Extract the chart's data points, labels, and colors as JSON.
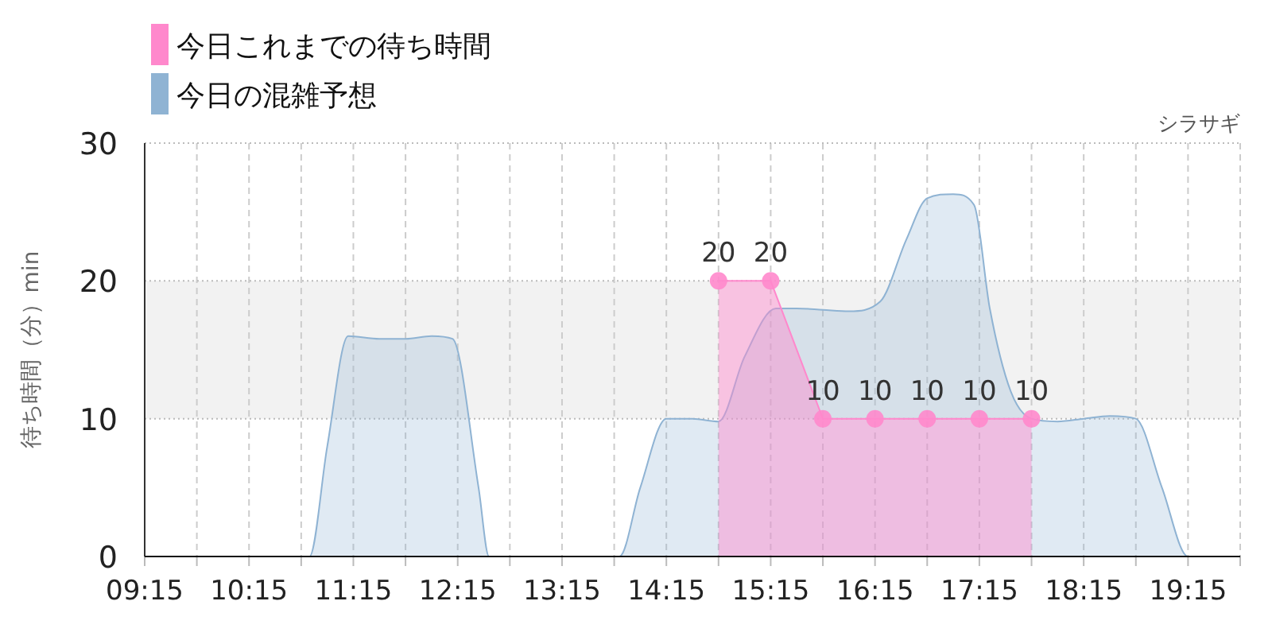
{
  "chart_data": {
    "type": "area",
    "subtitle": "シラサギ",
    "ylabel": "待ち時間（分）min",
    "xlim": [
      9.25,
      19.75
    ],
    "xticks": [
      {
        "value": 9.25,
        "label": "09:15"
      },
      {
        "value": 9.75,
        "label": null
      },
      {
        "value": 10.25,
        "label": "10:15"
      },
      {
        "value": 10.75,
        "label": null
      },
      {
        "value": 11.25,
        "label": "11:15"
      },
      {
        "value": 11.75,
        "label": null
      },
      {
        "value": 12.25,
        "label": "12:15"
      },
      {
        "value": 12.75,
        "label": null
      },
      {
        "value": 13.25,
        "label": "13:15"
      },
      {
        "value": 13.75,
        "label": null
      },
      {
        "value": 14.25,
        "label": "14:15"
      },
      {
        "value": 14.75,
        "label": null
      },
      {
        "value": 15.25,
        "label": "15:15"
      },
      {
        "value": 15.75,
        "label": null
      },
      {
        "value": 16.25,
        "label": "16:15"
      },
      {
        "value": 16.75,
        "label": null
      },
      {
        "value": 17.25,
        "label": "17:15"
      },
      {
        "value": 17.75,
        "label": null
      },
      {
        "value": 18.25,
        "label": "18:15"
      },
      {
        "value": 18.75,
        "label": null
      },
      {
        "value": 19.25,
        "label": "19:15"
      },
      {
        "value": 19.75,
        "label": null
      }
    ],
    "ylim": [
      0,
      30
    ],
    "yticks": [
      0,
      10,
      20,
      30
    ],
    "grid": true,
    "legend": "top left",
    "bands": [
      {
        "axis": "y",
        "from": 10,
        "to": 20,
        "color": "#f2f2f2"
      }
    ],
    "series": [
      {
        "name": "今日これまでの待ち時間",
        "color": "#ff88cc",
        "marker": "circle",
        "x": [
          14.75,
          15.25,
          15.75,
          16.25,
          16.75,
          17.25,
          17.75
        ],
        "values": [
          20,
          20,
          10,
          10,
          10,
          10,
          10
        ],
        "value_labels": [
          "20",
          "20",
          "10",
          "10",
          "10",
          "10",
          "10"
        ]
      },
      {
        "name": "今日の混雑予想",
        "color": "#8fb3d3",
        "marker": "none",
        "x": [
          9.25,
          10.5,
          10.83,
          11.0,
          11.2,
          11.5,
          11.75,
          12.0,
          12.2,
          12.45,
          12.55,
          12.65,
          13.25,
          13.8,
          14.0,
          14.25,
          14.5,
          14.75,
          15.0,
          15.3,
          15.5,
          15.75,
          16.0,
          16.3,
          16.55,
          16.75,
          17.0,
          17.2,
          17.35,
          17.55,
          17.75,
          18.0,
          18.25,
          18.5,
          18.75,
          19.0,
          19.25,
          19.5,
          19.75
        ],
        "values": [
          0,
          0,
          0,
          8,
          16,
          15.8,
          15.8,
          16,
          15.8,
          5,
          0,
          0,
          0,
          0,
          5,
          10,
          10,
          9.8,
          14.5,
          18,
          18,
          17.9,
          17.8,
          18.5,
          23,
          26,
          26.3,
          25.5,
          18,
          12,
          10,
          9.8,
          10,
          10.2,
          10,
          5,
          0,
          0,
          0
        ]
      }
    ]
  }
}
